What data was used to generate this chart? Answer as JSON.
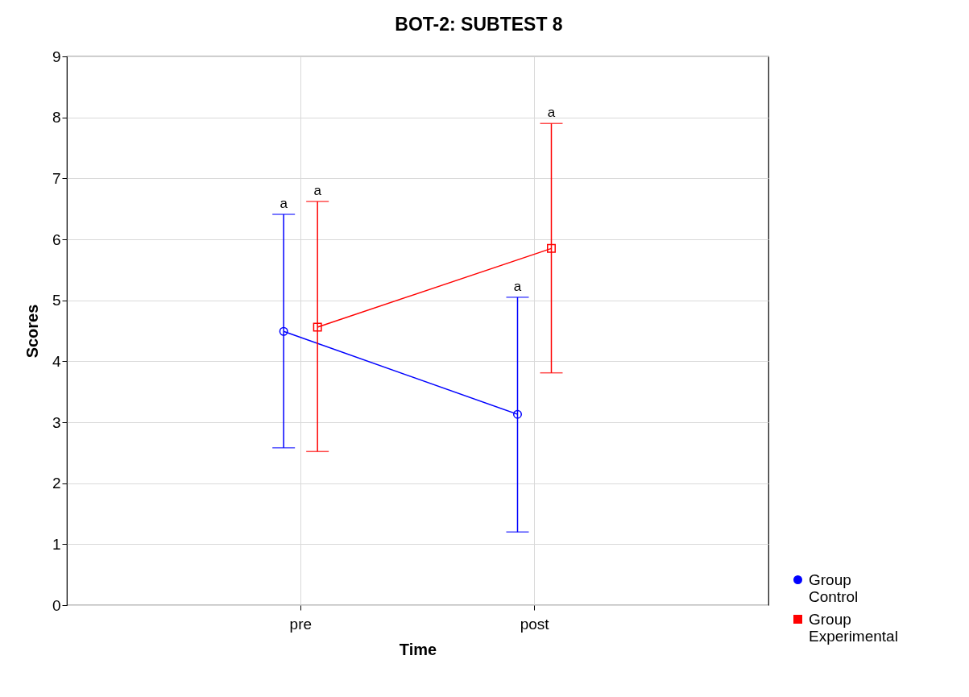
{
  "chart_data": {
    "type": "line",
    "title": "BOT-2: SUBTEST 8",
    "xlabel": "Time",
    "ylabel": "Scores",
    "categories": [
      "pre",
      "post"
    ],
    "series": [
      {
        "name": "Group Control",
        "color": "#0000ff",
        "marker": "circle",
        "values": [
          4.49,
          3.13
        ],
        "errors": [
          [
            2.58,
            6.41
          ],
          [
            1.2,
            5.05
          ]
        ]
      },
      {
        "name": "Group Experimental",
        "color": "#ff0000",
        "marker": "square",
        "values": [
          4.56,
          5.85
        ],
        "errors": [
          [
            2.52,
            6.62
          ],
          [
            3.81,
            7.9
          ]
        ]
      }
    ],
    "ylim": [
      0,
      9
    ],
    "yticks": [
      0,
      1,
      2,
      3,
      4,
      5,
      6,
      7,
      8,
      9
    ],
    "grid": true,
    "legend": "bottom right",
    "annotations": [
      "a",
      "a",
      "a",
      "a"
    ]
  }
}
